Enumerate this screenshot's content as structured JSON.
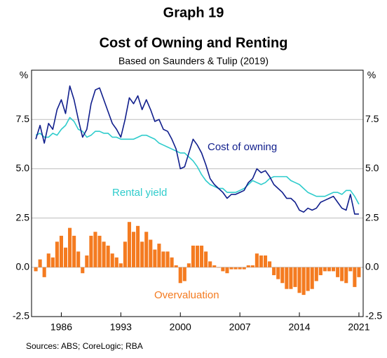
{
  "chart_data": {
    "type": "combo",
    "title": "Graph 19",
    "subtitle": "Cost of Owning and Renting",
    "note": "Based on Saunders & Tulip (2019)",
    "source": "Sources: ABS; CoreLogic; RBA",
    "y_unit": "%",
    "grid": true,
    "xlim": [
      1982.5,
      2021.5
    ],
    "xticks": [
      1986,
      1993,
      2000,
      2007,
      2014,
      2021
    ],
    "ylim": [
      -2.5,
      10
    ],
    "yticks": [
      -2.5,
      {
        "value": 0,
        "label": "0.0"
      },
      2.5,
      {
        "value": 5,
        "label": "5.0"
      },
      7.5
    ],
    "x": [
      1983,
      1983.5,
      1984,
      1984.5,
      1985,
      1985.5,
      1986,
      1986.5,
      1987,
      1987.5,
      1988,
      1988.5,
      1989,
      1989.5,
      1990,
      1990.5,
      1991,
      1991.5,
      1992,
      1992.5,
      1993,
      1993.5,
      1994,
      1994.5,
      1995,
      1995.5,
      1996,
      1996.5,
      1997,
      1997.5,
      1998,
      1998.5,
      1999,
      1999.5,
      2000,
      2000.5,
      2001,
      2001.5,
      2002,
      2002.5,
      2003,
      2003.5,
      2004,
      2004.5,
      2005,
      2005.5,
      2006,
      2006.5,
      2007,
      2007.5,
      2008,
      2008.5,
      2009,
      2009.5,
      2010,
      2010.5,
      2011,
      2011.5,
      2012,
      2012.5,
      2013,
      2013.5,
      2014,
      2014.5,
      2015,
      2015.5,
      2016,
      2016.5,
      2017,
      2017.5,
      2018,
      2018.5,
      2019,
      2019.5,
      2020,
      2020.5,
      2021
    ],
    "series": [
      {
        "name": "Overvaluation",
        "type": "bar",
        "color": "#f47b20",
        "values": [
          -0.2,
          0.4,
          -0.5,
          0.7,
          0.5,
          1.3,
          1.6,
          1.0,
          2.0,
          1.6,
          0.8,
          -0.3,
          0.6,
          1.6,
          1.8,
          1.6,
          1.3,
          1.1,
          0.7,
          0.5,
          0.2,
          1.3,
          2.3,
          1.8,
          2.1,
          1.3,
          1.8,
          1.4,
          0.9,
          1.2,
          0.8,
          0.8,
          0.5,
          0.1,
          -0.8,
          -0.7,
          0.2,
          1.1,
          1.1,
          1.1,
          0.8,
          0.3,
          0.1,
          0.0,
          -0.2,
          -0.3,
          -0.1,
          -0.1,
          -0.1,
          -0.1,
          0.1,
          0.1,
          0.7,
          0.6,
          0.6,
          0.3,
          -0.4,
          -0.6,
          -0.8,
          -1.1,
          -1.1,
          -1.0,
          -1.3,
          -1.4,
          -1.2,
          -1.1,
          -0.7,
          -0.4,
          -0.2,
          -0.2,
          -0.2,
          -0.5,
          -0.7,
          -0.8,
          -0.2,
          -1.0,
          -0.5
        ]
      },
      {
        "name": "Rental yield",
        "type": "line",
        "color": "#2fcccc",
        "values": [
          6.7,
          6.8,
          6.6,
          6.6,
          6.8,
          6.7,
          7.0,
          7.2,
          7.6,
          7.4,
          7.0,
          6.9,
          6.6,
          6.7,
          6.9,
          6.9,
          6.8,
          6.8,
          6.6,
          6.6,
          6.5,
          6.5,
          6.5,
          6.5,
          6.6,
          6.7,
          6.7,
          6.6,
          6.5,
          6.3,
          6.2,
          6.1,
          6.0,
          5.9,
          5.8,
          5.8,
          5.6,
          5.4,
          5.1,
          4.7,
          4.4,
          4.2,
          4.1,
          4.0,
          4.0,
          3.8,
          3.8,
          3.8,
          3.9,
          4.0,
          4.2,
          4.4,
          4.3,
          4.2,
          4.3,
          4.5,
          4.6,
          4.6,
          4.6,
          4.6,
          4.4,
          4.3,
          4.2,
          4.0,
          3.8,
          3.7,
          3.6,
          3.6,
          3.6,
          3.7,
          3.8,
          3.8,
          3.7,
          3.9,
          3.9,
          3.6,
          3.2
        ]
      },
      {
        "name": "Cost of owning",
        "type": "line",
        "color": "#101e8c",
        "values": [
          6.5,
          7.2,
          6.3,
          7.3,
          7.0,
          8.0,
          8.5,
          7.8,
          9.2,
          8.5,
          7.5,
          6.6,
          7.0,
          8.3,
          9.0,
          9.1,
          8.5,
          7.9,
          7.3,
          7.0,
          6.6,
          7.5,
          8.6,
          8.3,
          8.7,
          8.0,
          8.5,
          8.0,
          7.4,
          7.5,
          7.0,
          6.9,
          6.5,
          6.0,
          5.0,
          5.1,
          5.8,
          6.5,
          6.2,
          5.8,
          5.2,
          4.5,
          4.2,
          4.0,
          3.8,
          3.5,
          3.7,
          3.7,
          3.8,
          3.9,
          4.3,
          4.5,
          5.0,
          4.8,
          4.9,
          4.6,
          4.2,
          4.0,
          3.8,
          3.5,
          3.5,
          3.3,
          2.9,
          2.8,
          3.0,
          2.9,
          3.0,
          3.3,
          3.4,
          3.5,
          3.6,
          3.3,
          3.0,
          2.9,
          3.7,
          2.7,
          2.7
        ]
      }
    ]
  }
}
